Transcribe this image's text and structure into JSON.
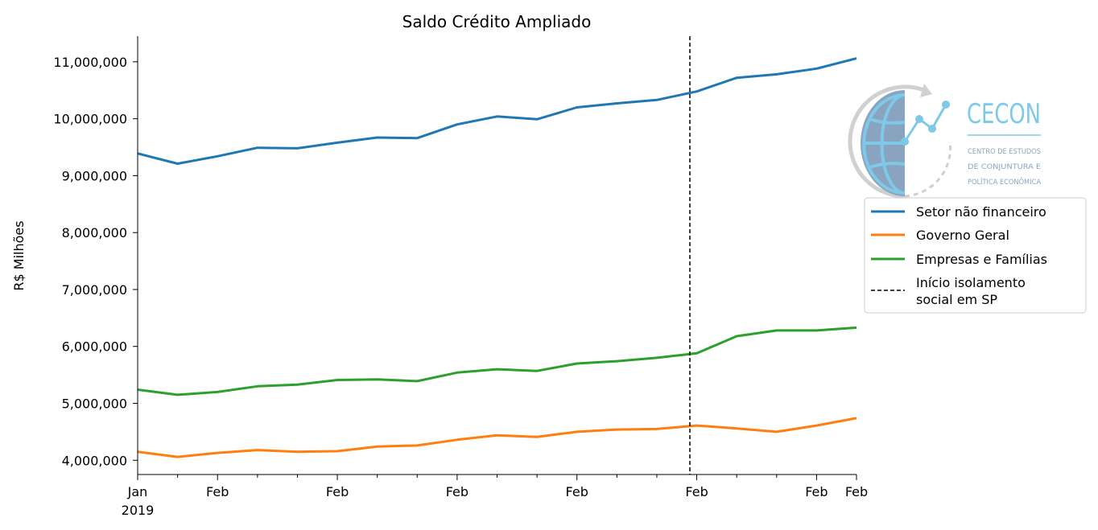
{
  "chart_data": {
    "type": "line",
    "title": "Saldo Crédito Ampliado",
    "xlabel": "",
    "ylabel": "R$ Milhões",
    "ylim": [
      3750000,
      11450000
    ],
    "yticks": [
      4000000,
      5000000,
      6000000,
      7000000,
      8000000,
      9000000,
      10000000,
      11000000
    ],
    "ytick_labels": [
      "4,000,000",
      "5,000,000",
      "6,000,000",
      "7,000,000",
      "8,000,000",
      "9,000,000",
      "10,000,000",
      "11,000,000"
    ],
    "x": [
      "2019-01",
      "2019-02",
      "2019-03",
      "2019-04",
      "2019-05",
      "2019-06",
      "2019-07",
      "2019-08",
      "2019-09",
      "2019-10",
      "2019-11",
      "2019-12",
      "2020-01",
      "2020-02",
      "2020-03",
      "2020-04",
      "2020-05",
      "2020-06",
      "2020-07"
    ],
    "xlim": [
      "2019-01",
      "2020-07"
    ],
    "xtick_major": [
      {
        "x": "2019-01",
        "label": "Jan"
      },
      {
        "x": "2019-03",
        "label": "Feb"
      },
      {
        "x": "2019-06",
        "label": "Feb"
      },
      {
        "x": "2019-09",
        "label": "Feb"
      },
      {
        "x": "2019-12",
        "label": "Feb"
      },
      {
        "x": "2020-03",
        "label": "Feb"
      },
      {
        "x": "2020-06",
        "label": "Feb"
      },
      {
        "x": "2020-07",
        "label": "Feb"
      }
    ],
    "xtick_year": {
      "x": "2019-01",
      "label": "2019"
    },
    "xtick_minor": [
      "2019-02",
      "2019-04",
      "2019-05",
      "2019-07",
      "2019-08",
      "2019-10",
      "2019-11",
      "2020-01",
      "2020-02",
      "2020-04",
      "2020-05"
    ],
    "series": [
      {
        "name": "Setor não financeiro",
        "color": "#1f77b4",
        "values": [
          9390000,
          9210000,
          9340000,
          9490000,
          9480000,
          9580000,
          9670000,
          9660000,
          9900000,
          10040000,
          9990000,
          10200000,
          10270000,
          10330000,
          10480000,
          10720000,
          10780000,
          10880000,
          11060000
        ]
      },
      {
        "name": "Governo Geral",
        "color": "#ff7f0e",
        "values": [
          4150000,
          4060000,
          4130000,
          4180000,
          4150000,
          4160000,
          4240000,
          4260000,
          4360000,
          4440000,
          4410000,
          4500000,
          4540000,
          4550000,
          4610000,
          4560000,
          4500000,
          4610000,
          4740000
        ]
      },
      {
        "name": "Empresas e Famílias",
        "color": "#2ca02c",
        "values": [
          5240000,
          5150000,
          5200000,
          5300000,
          5330000,
          5410000,
          5420000,
          5390000,
          5540000,
          5600000,
          5570000,
          5700000,
          5740000,
          5800000,
          5880000,
          6180000,
          6280000,
          6280000,
          6330000
        ]
      }
    ],
    "vline": {
      "x": "2020-02-25",
      "label": "Início isolamento social em SP",
      "color": "#000000",
      "style": "dashed"
    },
    "legend": {
      "placement": "right",
      "entries": [
        "Setor não financeiro",
        "Governo Geral",
        "Empresas e Famílias"
      ],
      "vline_label_lines": [
        "Início isolamento",
        "social em SP"
      ]
    },
    "grid": false
  },
  "logo": {
    "name": "CECON",
    "lines": [
      "CENTRO DE ESTUDOS",
      "DE CONJUNTURA E",
      "POLÍTICA ECONÔMICA"
    ],
    "colors": {
      "accent": "#7ec8e8",
      "globe": "#8aa4c0",
      "ring": "#d0d0d0"
    }
  }
}
